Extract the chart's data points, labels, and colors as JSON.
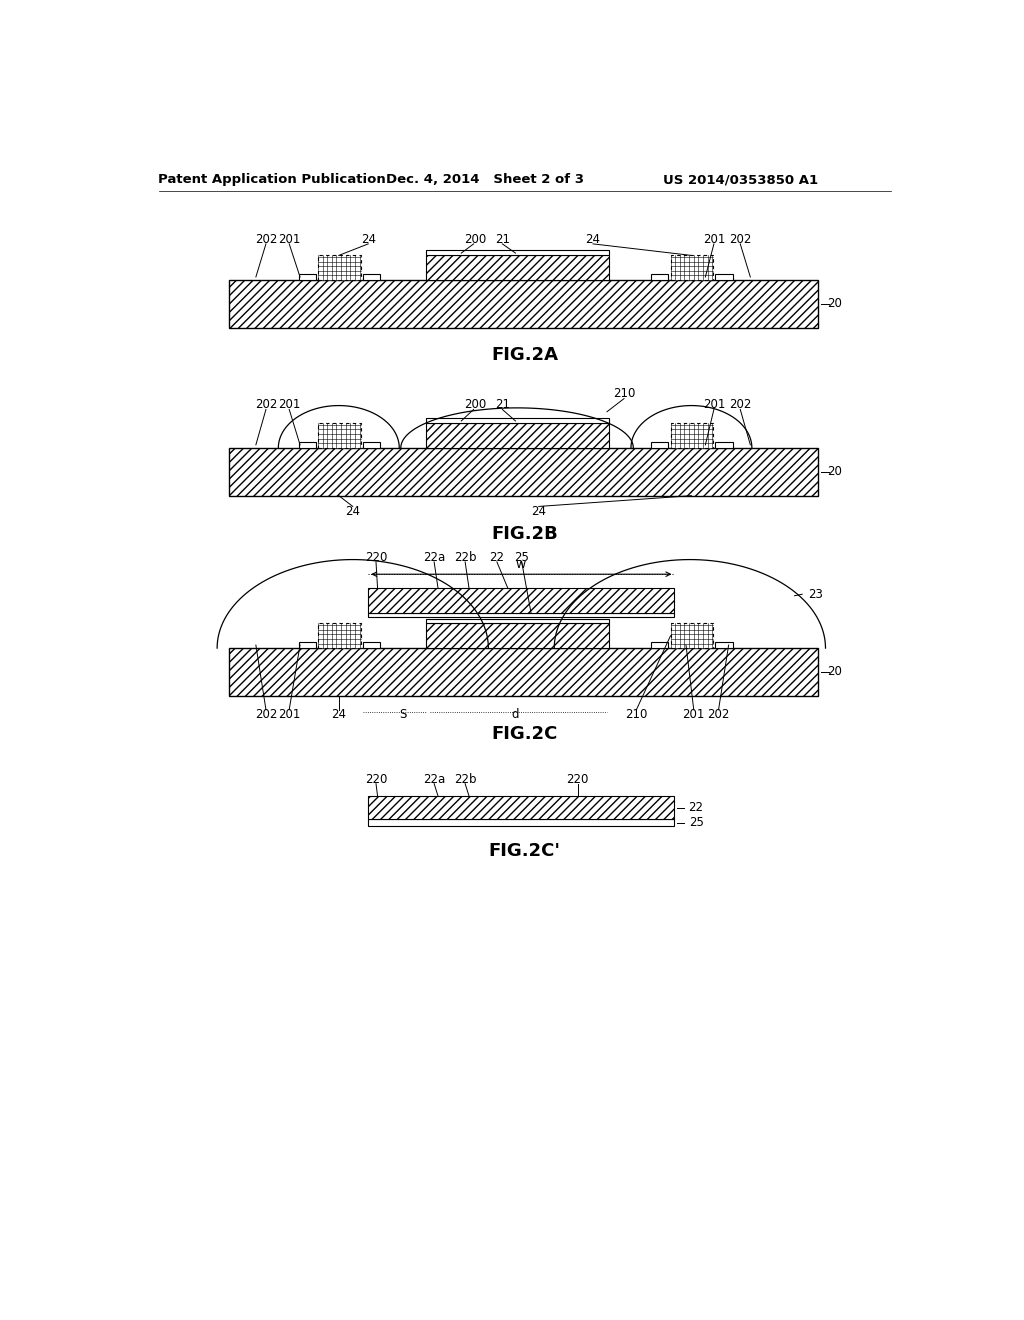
{
  "bg_color": "#ffffff",
  "header_left": "Patent Application Publication",
  "header_center": "Dec. 4, 2014   Sheet 2 of 3",
  "header_right": "US 2014/0353850 A1",
  "fig_labels": [
    "FIG.2A",
    "FIG.2B",
    "FIG.2C",
    "FIG.2C'"
  ],
  "hatch_pattern": "////",
  "line_color": "#000000"
}
